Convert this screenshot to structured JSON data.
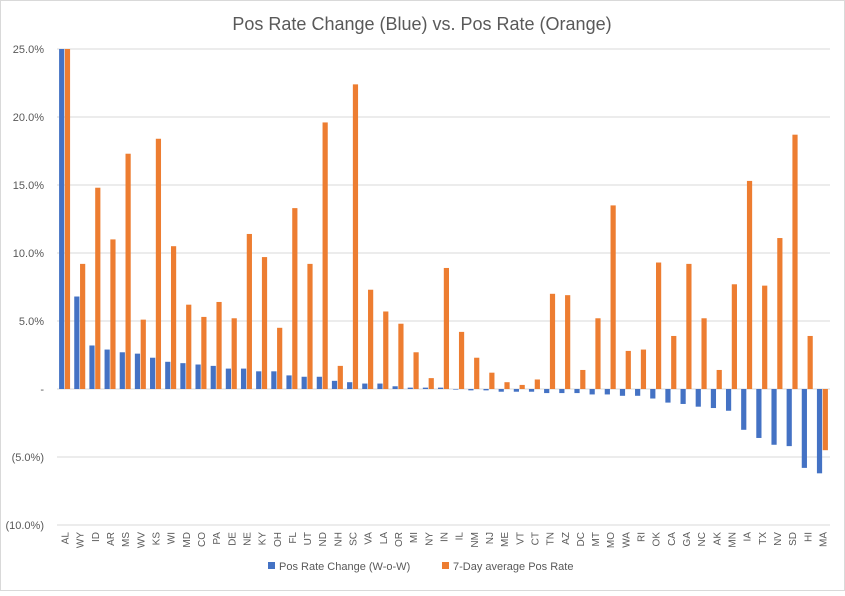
{
  "chart_data": {
    "type": "bar",
    "title": "Pos Rate Change (Blue) vs. Pos Rate (Orange)",
    "xlabel": "",
    "ylabel": "",
    "ylim": [
      -0.1,
      0.25
    ],
    "yticks": [
      {
        "value": 0.25,
        "label": "25.0%"
      },
      {
        "value": 0.2,
        "label": "20.0%"
      },
      {
        "value": 0.15,
        "label": "15.0%"
      },
      {
        "value": 0.1,
        "label": "10.0%"
      },
      {
        "value": 0.05,
        "label": "5.0%"
      },
      {
        "value": 0.0,
        "label": "-"
      },
      {
        "value": -0.05,
        "label": "(5.0%)"
      },
      {
        "value": -0.1,
        "label": "(10.0%)"
      }
    ],
    "grid": true,
    "legend_position": "bottom",
    "categories": [
      "AL",
      "WY",
      "ID",
      "AR",
      "MS",
      "WV",
      "KS",
      "WI",
      "MD",
      "CO",
      "PA",
      "DE",
      "NE",
      "KY",
      "OH",
      "FL",
      "UT",
      "ND",
      "NH",
      "SC",
      "VA",
      "LA",
      "OR",
      "MI",
      "NY",
      "IN",
      "IL",
      "NM",
      "NJ",
      "ME",
      "VT",
      "CT",
      "TN",
      "AZ",
      "DC",
      "MT",
      "MO",
      "WA",
      "RI",
      "OK",
      "CA",
      "GA",
      "NC",
      "AK",
      "MN",
      "IA",
      "TX",
      "NV",
      "SD",
      "HI",
      "MA"
    ],
    "series": [
      {
        "name": "Pos Rate Change (W-o-W)",
        "color": "#4472C4",
        "values": [
          0.25,
          0.068,
          0.032,
          0.029,
          0.027,
          0.026,
          0.023,
          0.02,
          0.019,
          0.018,
          0.017,
          0.015,
          0.015,
          0.013,
          0.013,
          0.01,
          0.009,
          0.009,
          0.006,
          0.005,
          0.004,
          0.004,
          0.002,
          0.001,
          0.001,
          0.001,
          0.0,
          -0.001,
          -0.001,
          -0.002,
          -0.002,
          -0.002,
          -0.003,
          -0.003,
          -0.003,
          -0.004,
          -0.004,
          -0.005,
          -0.005,
          -0.007,
          -0.01,
          -0.011,
          -0.013,
          -0.014,
          -0.016,
          -0.03,
          -0.036,
          -0.041,
          -0.042,
          -0.058,
          -0.062
        ]
      },
      {
        "name": "7-Day average Pos Rate",
        "color": "#ED7D31",
        "values": [
          0.25,
          0.092,
          0.148,
          0.11,
          0.173,
          0.051,
          0.184,
          0.105,
          0.062,
          0.053,
          0.064,
          0.052,
          0.114,
          0.097,
          0.045,
          0.133,
          0.092,
          0.196,
          0.017,
          0.224,
          0.073,
          0.057,
          0.048,
          0.027,
          0.008,
          0.089,
          0.042,
          0.023,
          0.012,
          0.005,
          0.003,
          0.007,
          0.07,
          0.069,
          0.014,
          0.052,
          0.135,
          0.028,
          0.029,
          0.093,
          0.039,
          0.092,
          0.052,
          0.014,
          0.077,
          0.153,
          0.076,
          0.111,
          0.187,
          0.039,
          -0.045
        ]
      }
    ]
  }
}
